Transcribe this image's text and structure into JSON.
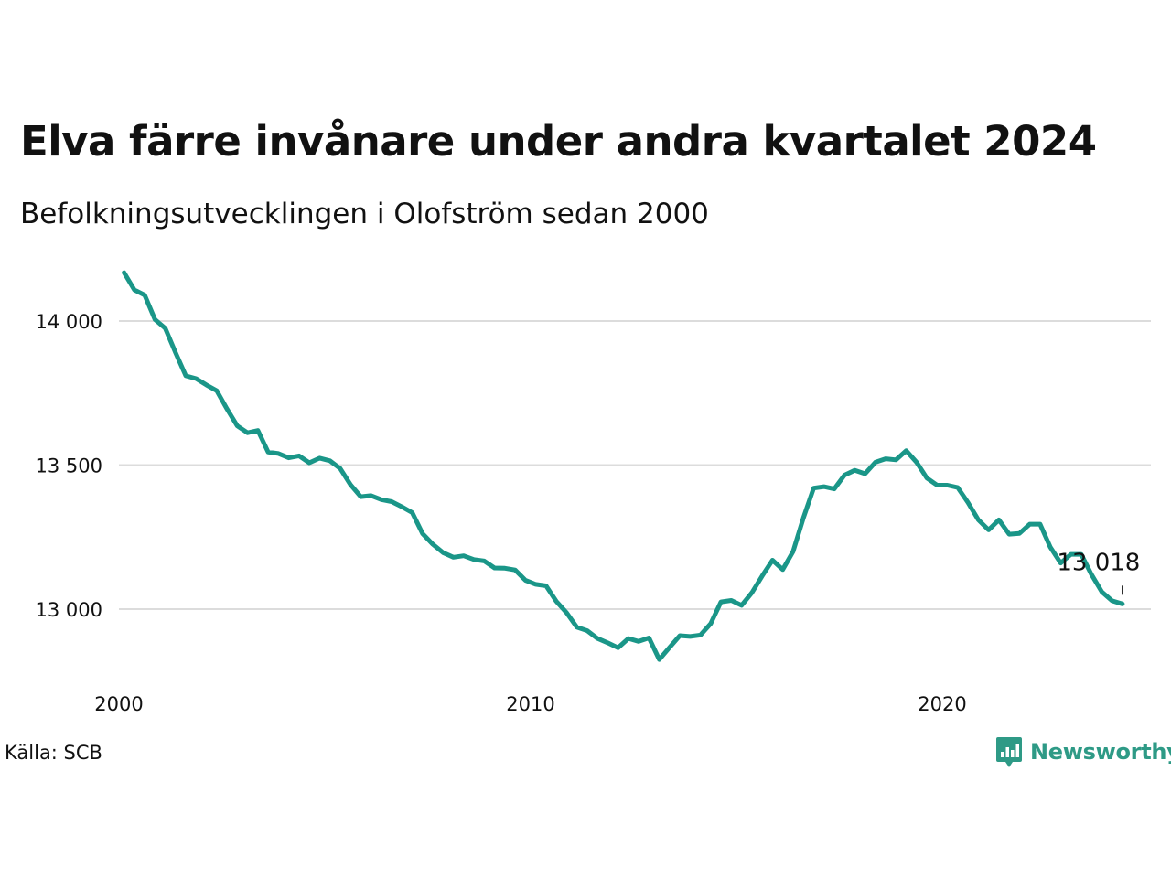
{
  "title": "Elva färre invånare under andra kvartalet 2024",
  "subtitle": "Befolkningsutvecklingen i Olofström sedan 2000",
  "source": "Källa: SCB",
  "brand": {
    "name": "Newsworthy",
    "icon": "newsworthy-logo-icon",
    "color": "#2e9a86"
  },
  "chart_data": {
    "type": "line",
    "color": "#1a9688",
    "grid": "horizontal",
    "ylim": [
      12770,
      14190
    ],
    "xlim": [
      2000,
      2025.5
    ],
    "yticks": [
      13000,
      13500,
      14000
    ],
    "ytick_labels": [
      "13 000",
      "13 500",
      "14 000"
    ],
    "xticks": [
      2000,
      2010,
      2020
    ],
    "xtick_labels": [
      "2000",
      "2010",
      "2020"
    ],
    "end_label": "13 018",
    "series": [
      {
        "x": [
          2000.125,
          2000.375,
          2000.625,
          2000.875,
          2001.125,
          2001.375,
          2001.625,
          2001.875,
          2002.125,
          2002.375,
          2002.625,
          2002.875,
          2003.125,
          2003.375,
          2003.625,
          2003.875,
          2004.125,
          2004.375,
          2004.625,
          2004.875,
          2005.125,
          2005.375,
          2005.625,
          2005.875,
          2006.125,
          2006.375,
          2006.625,
          2006.875,
          2007.125,
          2007.375,
          2007.625,
          2007.875,
          2008.125,
          2008.375,
          2008.625,
          2008.875,
          2009.125,
          2009.375,
          2009.625,
          2009.875,
          2010.125,
          2010.375,
          2010.625,
          2010.875,
          2011.125,
          2011.375,
          2011.625,
          2011.875,
          2012.125,
          2012.375,
          2012.625,
          2012.875,
          2013.125,
          2013.375,
          2013.625,
          2013.875,
          2014.125,
          2014.375,
          2014.625,
          2014.875,
          2015.125,
          2015.375,
          2015.625,
          2015.875,
          2016.125,
          2016.375,
          2016.625,
          2016.875,
          2017.125,
          2017.375,
          2017.625,
          2017.875,
          2018.125,
          2018.375,
          2018.625,
          2018.875,
          2019.125,
          2019.375,
          2019.625,
          2019.875,
          2020.125,
          2020.375,
          2020.625,
          2020.875,
          2021.125,
          2021.375,
          2021.625,
          2021.875,
          2022.125,
          2022.375,
          2022.625,
          2022.875,
          2023.125,
          2023.375,
          2023.625,
          2023.875,
          2024.125,
          2024.375
        ],
        "y": [
          14168,
          14108,
          14090,
          14005,
          13975,
          13890,
          13810,
          13800,
          13778,
          13758,
          13695,
          13636,
          13612,
          13620,
          13545,
          13540,
          13525,
          13532,
          13508,
          13524,
          13515,
          13488,
          13432,
          13390,
          13394,
          13380,
          13373,
          13355,
          13335,
          13262,
          13225,
          13196,
          13180,
          13185,
          13172,
          13167,
          13143,
          13142,
          13136,
          13100,
          13086,
          13081,
          13027,
          12987,
          12937,
          12925,
          12898,
          12883,
          12866,
          12898,
          12888,
          12900,
          12825,
          12867,
          12908,
          12905,
          12910,
          12950,
          13025,
          13030,
          13013,
          13057,
          13115,
          13170,
          13137,
          13200,
          13316,
          13420,
          13425,
          13417,
          13465,
          13482,
          13470,
          13510,
          13522,
          13518,
          13550,
          13510,
          13455,
          13430,
          13430,
          13422,
          13370,
          13310,
          13275,
          13310,
          13260,
          13263,
          13295,
          13295,
          13215,
          13160,
          13190,
          13190,
          13120,
          13060,
          13029,
          13018
        ]
      }
    ]
  }
}
